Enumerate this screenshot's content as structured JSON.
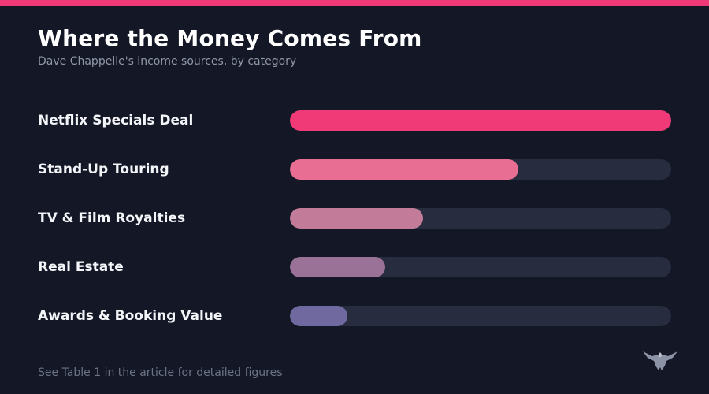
{
  "header": {
    "title": "Where the Money Comes From",
    "subtitle": "Dave Chappelle's income sources, by category"
  },
  "footer": {
    "note": "See Table 1 in the article for detailed figures"
  },
  "colors": {
    "accent": "#f03a78",
    "background": "#141826",
    "track": "#272c3e"
  },
  "chart_data": {
    "type": "bar",
    "orientation": "horizontal",
    "title": "Where the Money Comes From",
    "subtitle": "Dave Chappelle's income sources, by category",
    "categories": [
      "Netflix Specials Deal",
      "Stand-Up Touring",
      "TV & Film Royalties",
      "Real Estate",
      "Awards & Booking Value"
    ],
    "values": [
      100,
      60,
      35,
      25,
      15
    ],
    "value_scale": "relative share, largest = 100",
    "xlim": [
      0,
      100
    ],
    "colors": [
      "#f03a78",
      "#e86e93",
      "#c27b98",
      "#9a7298",
      "#70699f"
    ],
    "axis_labels_shown": false,
    "grid": false,
    "legend": "none"
  }
}
